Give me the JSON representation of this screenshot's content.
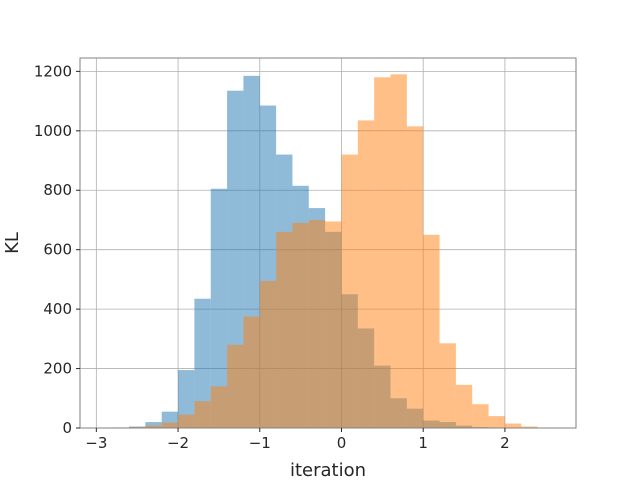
{
  "chart_data": {
    "type": "histogram",
    "xlabel": "iteration",
    "ylabel": "KL",
    "xlim": [
      -3.2,
      2.87
    ],
    "ylim": [
      0,
      1245
    ],
    "xticks": [
      -3,
      -2,
      -1,
      0,
      1,
      2
    ],
    "yticks": [
      0,
      200,
      400,
      600,
      800,
      1000,
      1200
    ],
    "grid": true,
    "alpha": 0.5,
    "series": [
      {
        "color": "#1f77b4",
        "bin_edges": [
          -2.8,
          -2.6,
          -2.4,
          -2.2,
          -2.0,
          -1.8,
          -1.6,
          -1.4,
          -1.2,
          -1.0,
          -0.8,
          -0.6,
          -0.4,
          -0.2,
          0.0,
          0.2,
          0.4,
          0.6,
          0.8,
          1.0,
          1.2,
          1.4,
          1.6,
          1.8,
          2.0
        ],
        "counts": [
          2,
          5,
          20,
          55,
          195,
          435,
          805,
          1135,
          1185,
          1085,
          920,
          815,
          740,
          660,
          450,
          335,
          210,
          100,
          65,
          25,
          20,
          8,
          3,
          1
        ]
      },
      {
        "color": "#ff7f0e",
        "bin_edges": [
          -2.6,
          -2.4,
          -2.2,
          -2.0,
          -1.8,
          -1.6,
          -1.4,
          -1.2,
          -1.0,
          -0.8,
          -0.6,
          -0.4,
          -0.2,
          0.0,
          0.2,
          0.4,
          0.6,
          0.8,
          1.0,
          1.2,
          1.4,
          1.6,
          1.8,
          2.0,
          2.2,
          2.4
        ],
        "counts": [
          3,
          8,
          18,
          45,
          90,
          140,
          280,
          375,
          495,
          660,
          690,
          700,
          695,
          920,
          1035,
          1180,
          1190,
          1015,
          650,
          285,
          145,
          80,
          40,
          15,
          5
        ]
      }
    ]
  }
}
